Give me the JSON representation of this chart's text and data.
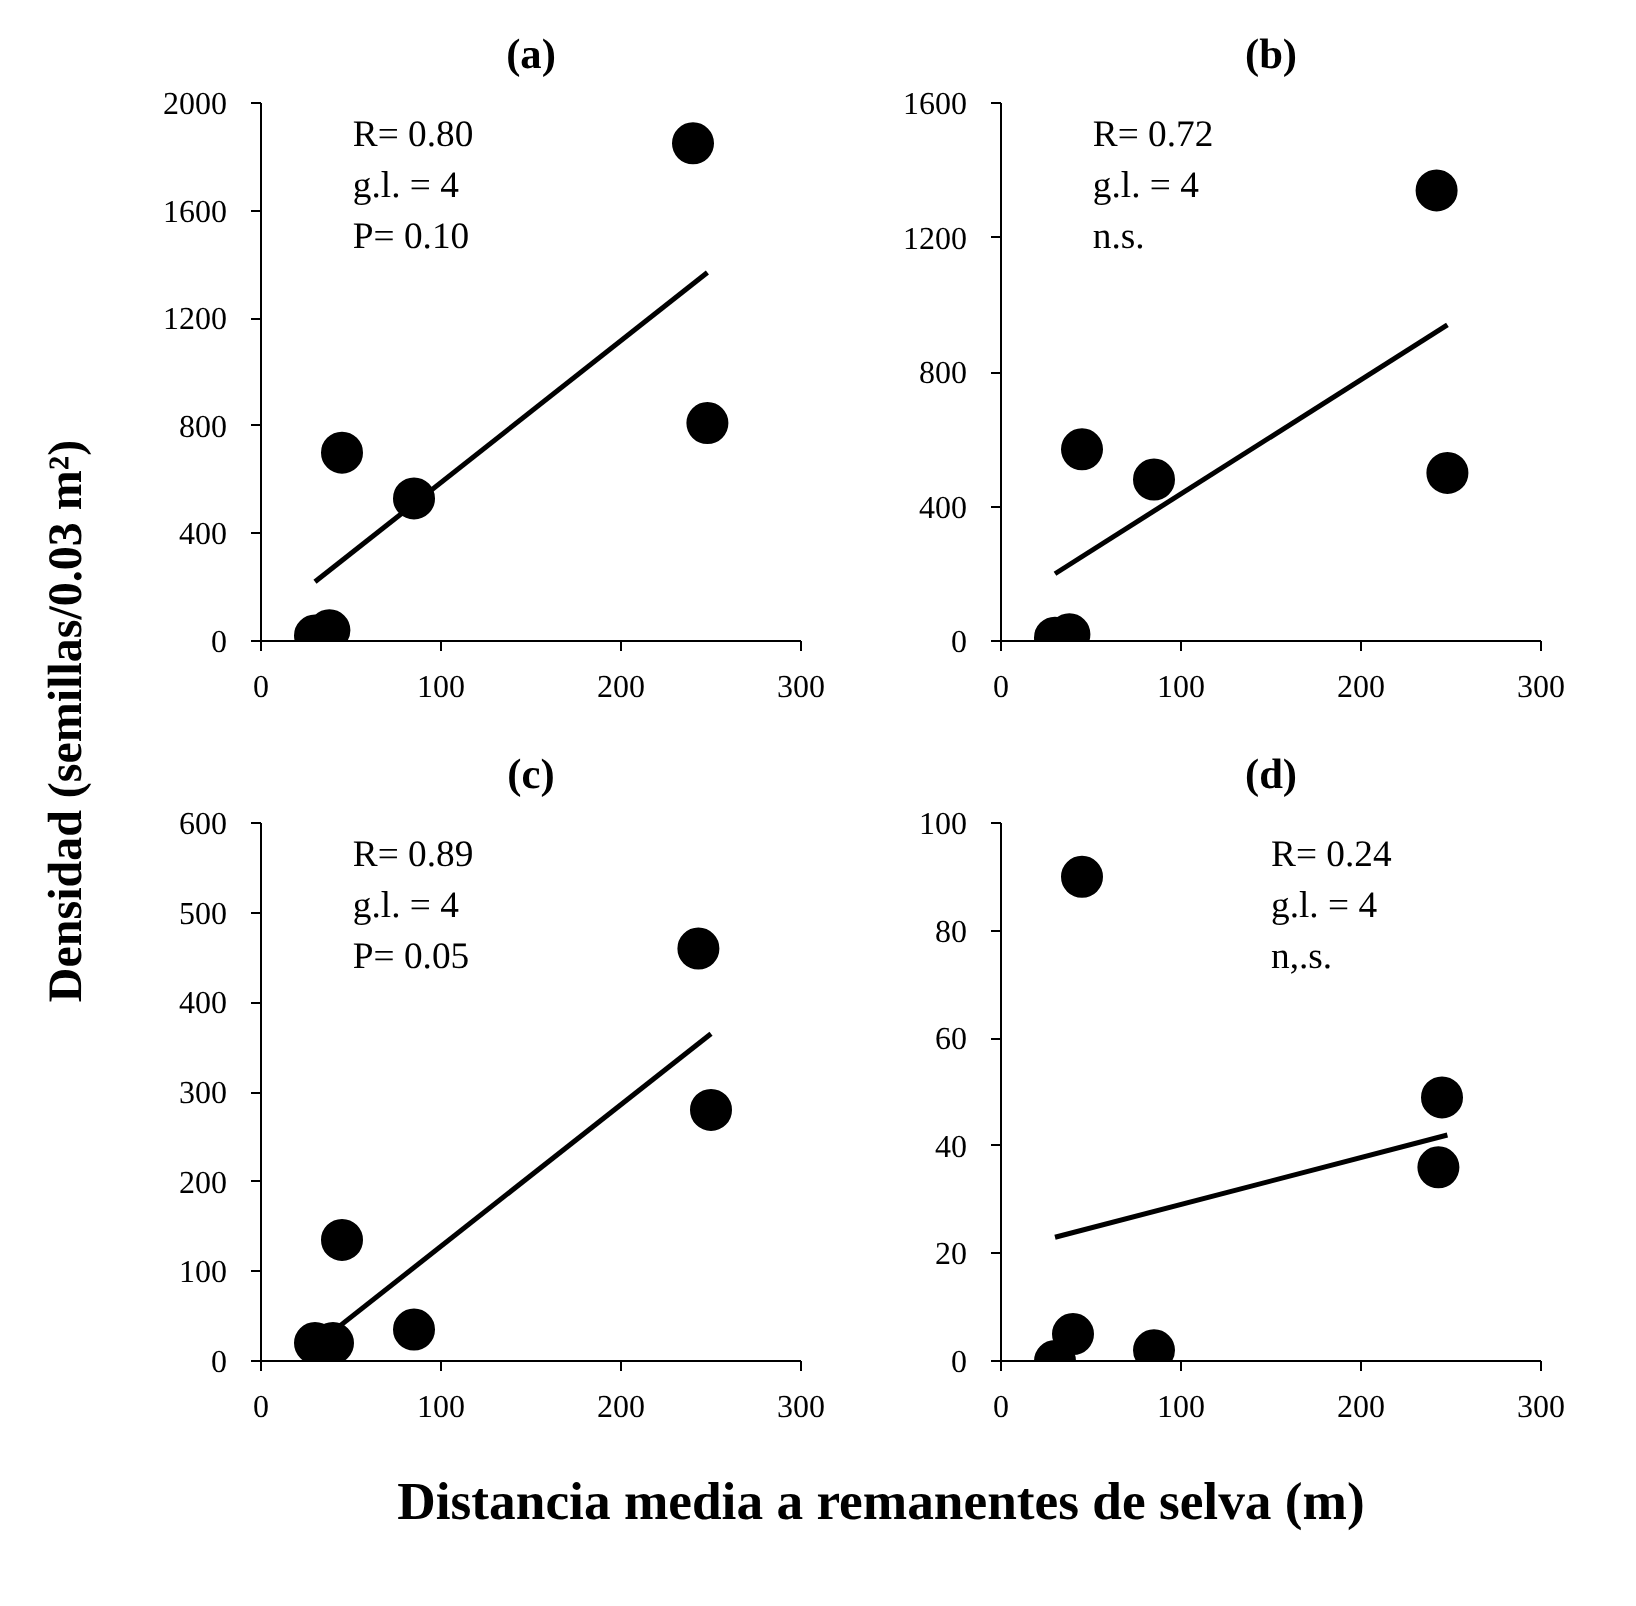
{
  "chart_data": [
    {
      "type": "scatter",
      "title": "(a)",
      "ylabel": "Densidad (semillas/0.03 m²)",
      "xlim": [
        0,
        300
      ],
      "xticks": [
        0,
        100,
        200,
        300
      ],
      "ylim": [
        0,
        2000
      ],
      "yticks": [
        0,
        400,
        800,
        1200,
        1600,
        2000
      ],
      "grid": false,
      "annotations": [
        "R= 0.80",
        "g.l. = 4",
        "P= 0.10"
      ],
      "series": [
        {
          "color": "#000000",
          "marker": "circle",
          "x": [
            30,
            38,
            45,
            85,
            240,
            248
          ],
          "values": [
            20,
            40,
            700,
            530,
            1850,
            810
          ]
        },
        {
          "type": "line",
          "color": "#000000",
          "x": [
            30,
            248
          ],
          "values": [
            220,
            1370
          ]
        }
      ]
    },
    {
      "type": "scatter",
      "title": "(b)",
      "xlim": [
        0,
        300
      ],
      "xticks": [
        0,
        100,
        200,
        300
      ],
      "ylim": [
        0,
        1600
      ],
      "yticks": [
        0,
        400,
        800,
        1200,
        1600
      ],
      "grid": false,
      "annotations": [
        "R= 0.72",
        "g.l. = 4",
        "n.s."
      ],
      "series": [
        {
          "color": "#000000",
          "marker": "circle",
          "x": [
            30,
            38,
            45,
            85,
            242,
            248
          ],
          "values": [
            10,
            20,
            570,
            480,
            1340,
            500
          ]
        },
        {
          "type": "line",
          "color": "#000000",
          "x": [
            30,
            248
          ],
          "values": [
            200,
            940
          ]
        }
      ]
    },
    {
      "type": "scatter",
      "title": "(c)",
      "xlabel": "Distancia media a remanentes de selva (m)",
      "xlim": [
        0,
        300
      ],
      "xticks": [
        0,
        100,
        200,
        300
      ],
      "ylim": [
        0,
        600
      ],
      "yticks": [
        0,
        100,
        200,
        300,
        400,
        500,
        600
      ],
      "grid": false,
      "annotations": [
        "R= 0.89",
        "g.l. = 4",
        "P= 0.05"
      ],
      "series": [
        {
          "color": "#000000",
          "marker": "circle",
          "x": [
            30,
            40,
            45,
            85,
            243,
            250
          ],
          "values": [
            20,
            20,
            135,
            35,
            460,
            280
          ]
        },
        {
          "type": "line",
          "color": "#000000",
          "x": [
            38,
            250
          ],
          "values": [
            30,
            365
          ]
        }
      ]
    },
    {
      "type": "scatter",
      "title": "(d)",
      "xlim": [
        0,
        300
      ],
      "xticks": [
        0,
        100,
        200,
        300
      ],
      "ylim": [
        0,
        100
      ],
      "yticks": [
        0,
        20,
        40,
        60,
        80,
        100
      ],
      "grid": false,
      "annotations": [
        "R= 0.24",
        "g.l. = 4",
        "n,.s."
      ],
      "series": [
        {
          "color": "#000000",
          "marker": "circle",
          "x": [
            30,
            40,
            45,
            85,
            243,
            245
          ],
          "values": [
            0,
            5,
            90,
            2,
            36,
            49
          ]
        },
        {
          "type": "line",
          "color": "#000000",
          "x": [
            30,
            248
          ],
          "values": [
            23,
            42
          ]
        }
      ]
    }
  ]
}
